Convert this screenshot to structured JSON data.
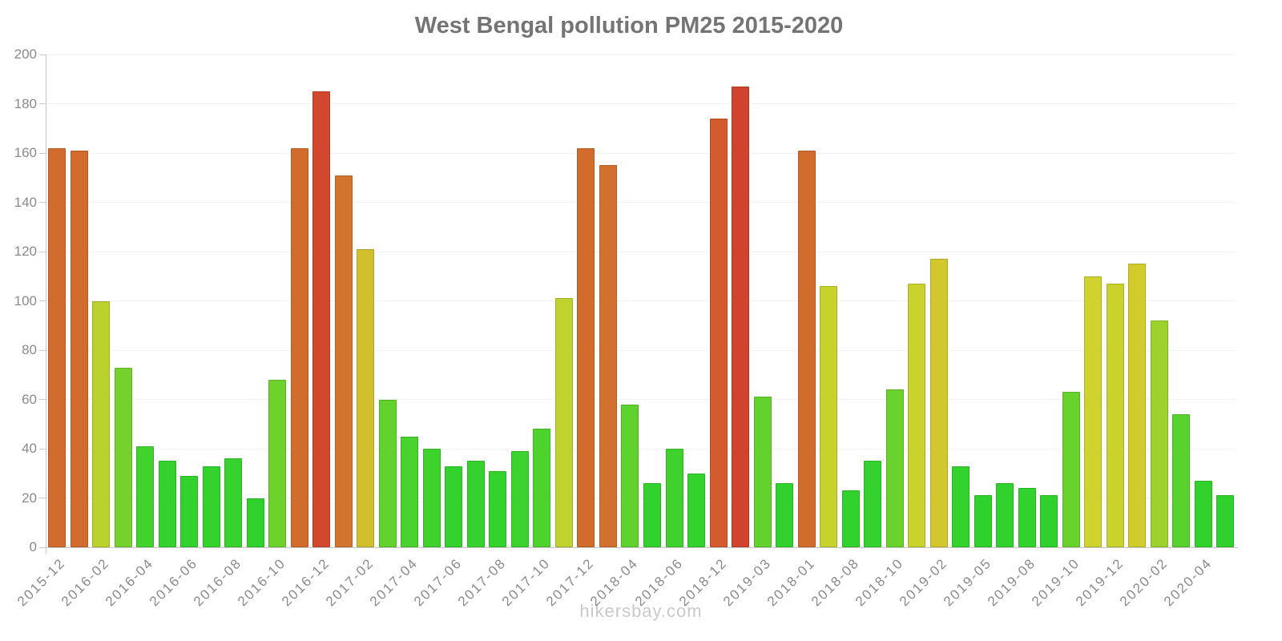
{
  "chart_data": {
    "type": "bar",
    "title": "West Bengal pollution PM25 2015-2020",
    "watermark": "hikersbay.com",
    "xlabel": "",
    "ylabel": "",
    "ylim": [
      0,
      200
    ],
    "ytick_values": [
      0,
      20,
      40,
      60,
      80,
      100,
      120,
      140,
      160,
      180,
      200
    ],
    "grid": true,
    "legend": false,
    "bars": [
      {
        "label": "2015-12",
        "value": 162
      },
      {
        "label": "",
        "value": 161
      },
      {
        "label": "2016-02",
        "value": 100
      },
      {
        "label": "",
        "value": 73
      },
      {
        "label": "2016-04",
        "value": 41
      },
      {
        "label": "",
        "value": 35
      },
      {
        "label": "2016-06",
        "value": 29
      },
      {
        "label": "",
        "value": 33
      },
      {
        "label": "2016-08",
        "value": 36
      },
      {
        "label": "",
        "value": 20
      },
      {
        "label": "2016-10",
        "value": 68
      },
      {
        "label": "",
        "value": 162
      },
      {
        "label": "2016-12",
        "value": 185
      },
      {
        "label": "",
        "value": 151
      },
      {
        "label": "2017-02",
        "value": 121
      },
      {
        "label": "",
        "value": 60
      },
      {
        "label": "2017-04",
        "value": 45
      },
      {
        "label": "",
        "value": 40
      },
      {
        "label": "2017-06",
        "value": 33
      },
      {
        "label": "",
        "value": 35
      },
      {
        "label": "2017-08",
        "value": 31
      },
      {
        "label": "",
        "value": 39
      },
      {
        "label": "2017-10",
        "value": 48
      },
      {
        "label": "",
        "value": 101
      },
      {
        "label": "2017-12",
        "value": 162
      },
      {
        "label": "",
        "value": 155
      },
      {
        "label": "2018-04",
        "value": 58
      },
      {
        "label": "",
        "value": 26
      },
      {
        "label": "2018-06",
        "value": 40
      },
      {
        "label": "",
        "value": 30
      },
      {
        "label": "2018-12",
        "value": 174
      },
      {
        "label": "",
        "value": 187
      },
      {
        "label": "2019-03",
        "value": 61
      },
      {
        "label": "",
        "value": 26
      },
      {
        "label": "2018-01",
        "value": 161
      },
      {
        "label": "",
        "value": 106
      },
      {
        "label": "2018-08",
        "value": 23
      },
      {
        "label": "",
        "value": 35
      },
      {
        "label": "2018-10",
        "value": 64
      },
      {
        "label": "",
        "value": 107
      },
      {
        "label": "2019-02",
        "value": 117
      },
      {
        "label": "",
        "value": 33
      },
      {
        "label": "2019-05",
        "value": 21
      },
      {
        "label": "",
        "value": 26
      },
      {
        "label": "2019-08",
        "value": 24
      },
      {
        "label": "",
        "value": 21
      },
      {
        "label": "2019-10",
        "value": 63
      },
      {
        "label": "",
        "value": 110
      },
      {
        "label": "2019-12",
        "value": 107
      },
      {
        "label": "",
        "value": 115
      },
      {
        "label": "2020-02",
        "value": 92
      },
      {
        "label": "",
        "value": 54
      },
      {
        "label": "2020-04",
        "value": 27
      },
      {
        "label": "",
        "value": 21
      }
    ],
    "colors": {
      "saturation": 65,
      "lightness": 50,
      "hue_anchors": [
        [
          0,
          122
        ],
        [
          35,
          117
        ],
        [
          48,
          108
        ],
        [
          64,
          98
        ],
        [
          75,
          93
        ],
        [
          92,
          80
        ],
        [
          101,
          67
        ],
        [
          110,
          61
        ],
        [
          121,
          53
        ],
        [
          151,
          26
        ],
        [
          165,
          22
        ],
        [
          176,
          16
        ],
        [
          187,
          8
        ],
        [
          200,
          4
        ]
      ],
      "title_color": "#747474",
      "axis_label_color": "#8a8a8a",
      "axis_line_color": "#c9c9c9",
      "grid_color": "#f2f2f2",
      "watermark_color": "#c9c9c9",
      "background": "#ffffff"
    }
  }
}
